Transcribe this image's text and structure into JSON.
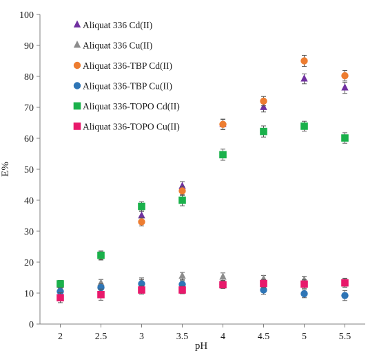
{
  "chart_data": {
    "type": "scatter",
    "title": "",
    "xlabel": "pH",
    "ylabel": "E%",
    "xlim": [
      1.75,
      5.75
    ],
    "ylim": [
      0,
      100
    ],
    "x_ticks": [
      2,
      2.5,
      3,
      3.5,
      4,
      4.5,
      5,
      5.5
    ],
    "x_tick_labels": [
      "2",
      "2.5",
      "3",
      "3.5",
      "4",
      "4.5",
      "5",
      "5.5"
    ],
    "y_ticks": [
      0,
      10,
      20,
      30,
      40,
      50,
      60,
      70,
      80,
      90,
      100
    ],
    "y_tick_labels": [
      "0",
      "10",
      "20",
      "30",
      "40",
      "50",
      "60",
      "70",
      "80",
      "90",
      "100"
    ],
    "grid": false,
    "legend_position": "top-left",
    "x": [
      2,
      2.5,
      3,
      3.5,
      4,
      4.5,
      5,
      5.5
    ],
    "series": [
      {
        "name": "Aliquat 336 Cd(II)",
        "marker": "triangle",
        "color": "#7030a0",
        "values": [
          12.5,
          22.0,
          35.0,
          44.5,
          64.5,
          70.0,
          79.2,
          76.3
        ],
        "errors": [
          1.2,
          1.3,
          1.4,
          1.5,
          1.7,
          1.5,
          1.6,
          1.8
        ]
      },
      {
        "name": "Aliquat 336 Cu(II)",
        "marker": "triangle",
        "color": "#8c8c8c",
        "values": [
          11.5,
          13.2,
          13.5,
          15.5,
          15.2,
          14.5,
          14.2,
          13.5
        ],
        "errors": [
          1.3,
          1.2,
          1.4,
          1.2,
          1.3,
          1.2,
          1.2,
          1.3
        ]
      },
      {
        "name": "Aliquat 336-TBP Cd(II)",
        "marker": "circle",
        "color": "#ed7d31",
        "values": [
          12.5,
          22.0,
          33.0,
          43.0,
          64.5,
          72.0,
          85.0,
          80.2
        ],
        "errors": [
          1.2,
          1.3,
          1.3,
          1.5,
          1.6,
          1.5,
          1.8,
          1.7
        ]
      },
      {
        "name": "Aliquat 336-TBP Cu(II)",
        "marker": "circle",
        "color": "#2e75b6",
        "values": [
          10.5,
          11.8,
          13.0,
          12.8,
          12.8,
          11.0,
          9.8,
          9.2
        ],
        "errors": [
          1.2,
          1.2,
          1.3,
          1.2,
          1.3,
          1.4,
          1.3,
          1.6
        ]
      },
      {
        "name": "Aliquat 336-TOPO Cd(II)",
        "marker": "square",
        "color": "#1ab14b",
        "values": [
          13.0,
          22.2,
          38.0,
          40.0,
          54.7,
          62.2,
          63.9,
          60.1
        ],
        "errors": [
          1.1,
          1.4,
          1.5,
          1.8,
          1.8,
          1.8,
          1.6,
          1.7
        ]
      },
      {
        "name": "Aliquat 336-TOPO Cu(II)",
        "marker": "square",
        "color": "#e8196b",
        "values": [
          8.5,
          9.5,
          11.0,
          11.0,
          12.7,
          13.1,
          12.9,
          13.3
        ],
        "errors": [
          1.6,
          1.8,
          1.3,
          1.2,
          1.2,
          1.3,
          1.4,
          1.4
        ]
      }
    ]
  }
}
